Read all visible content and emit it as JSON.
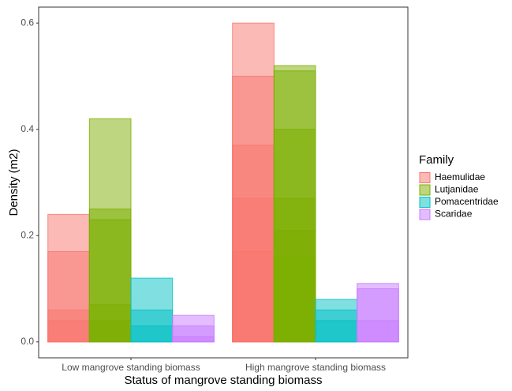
{
  "chart_data": {
    "type": "bar",
    "xlabel": "Status of mangrove standing biomass",
    "ylabel": "Density (m2)",
    "categories": [
      "Low mangrove standing biomass",
      "High mangrove standing biomass"
    ],
    "series": [
      {
        "name": "Haemulidae",
        "color": "#F8766D",
        "values": [
          [
            0.24,
            0.17,
            0.06,
            0.04
          ],
          [
            0.6,
            0.5,
            0.37,
            0.27,
            0.17
          ]
        ]
      },
      {
        "name": "Lutjanidae",
        "color": "#7CAE00",
        "values": [
          [
            0.42,
            0.25,
            0.23,
            0.07,
            0.04
          ],
          [
            0.52,
            0.51,
            0.4,
            0.27,
            0.21,
            0.16
          ]
        ]
      },
      {
        "name": "Pomacentridae",
        "color": "#00BFC4",
        "values": [
          [
            0.12,
            0.06,
            0.03
          ],
          [
            0.08,
            0.06,
            0.04
          ]
        ]
      },
      {
        "name": "Scaridae",
        "color": "#C77CFF",
        "values": [
          [
            0.05,
            0.03,
            0.01
          ],
          [
            0.11,
            0.1,
            0.04
          ]
        ]
      }
    ],
    "legend_title": "Family",
    "legend_position": "right",
    "ylim": [
      -0.03,
      0.63
    ],
    "yticks": [
      {
        "value": 0,
        "label": "0.0"
      },
      0.2,
      0.4,
      0.6
    ],
    "grid": false
  }
}
